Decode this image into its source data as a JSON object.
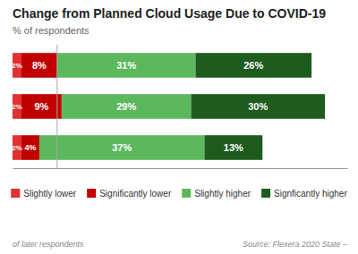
{
  "chart_data": {
    "type": "bar",
    "orientation": "horizontal",
    "stacked": true,
    "title": "Change from Planned Cloud Usage Due to COVID-19",
    "subtitle": "% of respondents",
    "annotations": [
      "of later respondents",
      "Source: Flexera 2020 State –"
    ],
    "categories": [
      null,
      null,
      null
    ],
    "series": [
      {
        "name": "Slightly lower",
        "color": "#e03030",
        "values": [
          2,
          2,
          2
        ],
        "value_labels": [
          "2%",
          "2%",
          "2%"
        ]
      },
      {
        "name": "Significantly lower",
        "color": "#c00000",
        "values": [
          8,
          9,
          4
        ],
        "value_labels": [
          "8%",
          "9%",
          "4%"
        ]
      },
      {
        "name": "Slightly higher",
        "color": "#5cb85c",
        "values": [
          31,
          29,
          37
        ],
        "value_labels": [
          "31%",
          "29%",
          "37%"
        ]
      },
      {
        "name": "Signficantly higher",
        "color": "#1e5c1e",
        "values": [
          26,
          30,
          13
        ],
        "value_labels": [
          "26%",
          "30%",
          "13%"
        ]
      }
    ],
    "vline": 10,
    "xlim": [
      0,
      75
    ],
    "data_labels": true,
    "tick_labels": false,
    "grid": false,
    "legend": "bottom"
  }
}
